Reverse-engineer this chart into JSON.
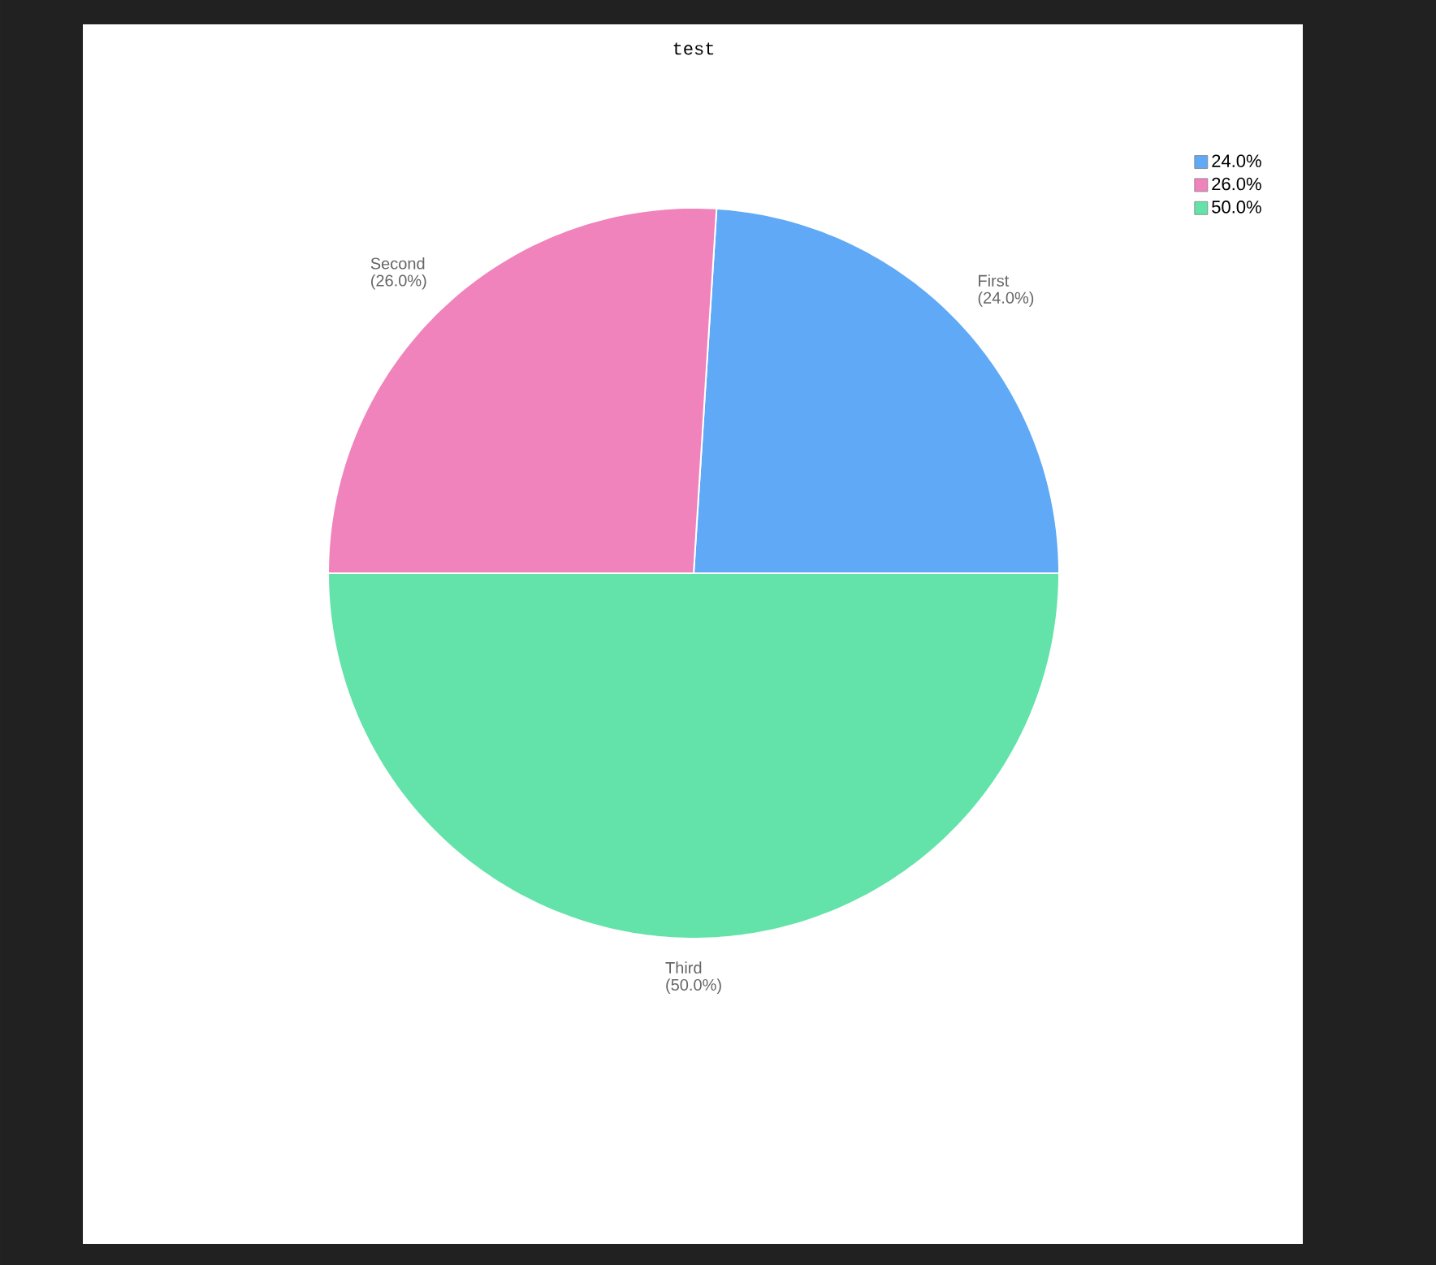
{
  "chart_data": {
    "type": "pie",
    "title": "test",
    "categories": [
      "24.0%",
      "26.0%",
      "50.0%"
    ],
    "values": [
      24,
      26,
      50
    ],
    "value_labels": [
      "First (24.0%)",
      "Second (26.0%)",
      "Third (50.0%)"
    ],
    "colors": [
      "#60a9f6",
      "#f083bb",
      "#63e3a9"
    ],
    "legend": "top right"
  }
}
